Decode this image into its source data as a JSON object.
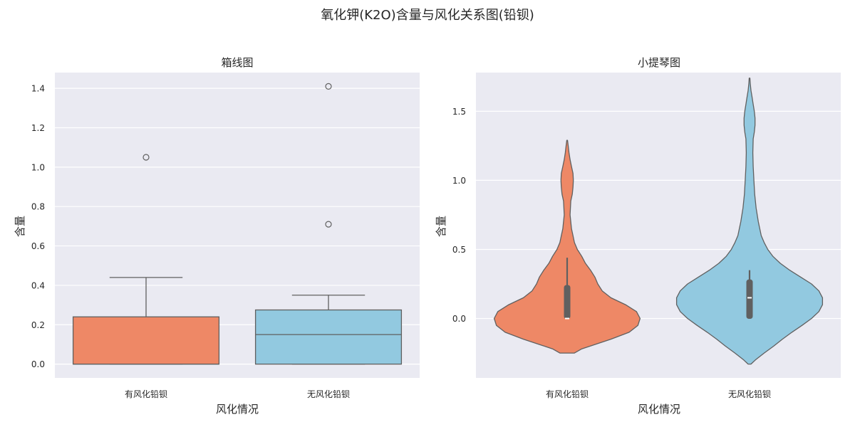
{
  "figure": {
    "suptitle": "氧化钾(K2O)含量与风化关系图(铅钡)"
  },
  "colors": {
    "background": "#eaeaf2",
    "grid": "#ffffff",
    "edge": "#606060",
    "series": [
      "#ee8866",
      "#92c9e0"
    ]
  },
  "chart_data": [
    {
      "type": "box",
      "title": "箱线图",
      "xlabel": "风化情况",
      "ylabel": "含量",
      "categories": [
        "有风化铅钡",
        "无风化铅钡"
      ],
      "ylim": [
        -0.07,
        1.48
      ],
      "yticks": [
        0.0,
        0.2,
        0.4,
        0.6,
        0.8,
        1.0,
        1.2,
        1.4
      ],
      "ytick_labels": [
        "0.0",
        "0.2",
        "0.4",
        "0.6",
        "0.8",
        "1.0",
        "1.2",
        "1.4"
      ],
      "grid": true,
      "boxes": [
        {
          "category": "有风化铅钡",
          "whislo": 0.0,
          "q1": 0.0,
          "median": 0.0,
          "q3": 0.24,
          "whishi": 0.44,
          "fliers": [
            1.05
          ]
        },
        {
          "category": "无风化铅钡",
          "whislo": 0.0,
          "q1": 0.0,
          "median": 0.15,
          "q3": 0.275,
          "whishi": 0.35,
          "fliers": [
            0.71,
            1.41
          ]
        }
      ]
    },
    {
      "type": "violin",
      "title": "小提琴图",
      "xlabel": "风化情况",
      "ylabel": "含量",
      "categories": [
        "有风化铅钡",
        "无风化铅钡"
      ],
      "ylim": [
        -0.43,
        1.78
      ],
      "yticks": [
        0.0,
        0.5,
        1.0,
        1.5
      ],
      "ytick_labels": [
        "0.0",
        "0.5",
        "1.0",
        "1.5"
      ],
      "grid": true,
      "violins": [
        {
          "category": "有风化铅钡",
          "profile": [
            [
              -0.25,
              0.1
            ],
            [
              -0.22,
              0.2
            ],
            [
              -0.15,
              0.6
            ],
            [
              -0.1,
              0.85
            ],
            [
              -0.05,
              0.97
            ],
            [
              0.0,
              1.0
            ],
            [
              0.05,
              0.95
            ],
            [
              0.1,
              0.8
            ],
            [
              0.15,
              0.6
            ],
            [
              0.2,
              0.48
            ],
            [
              0.25,
              0.42
            ],
            [
              0.3,
              0.38
            ],
            [
              0.35,
              0.32
            ],
            [
              0.4,
              0.25
            ],
            [
              0.45,
              0.2
            ],
            [
              0.5,
              0.14
            ],
            [
              0.55,
              0.1
            ],
            [
              0.6,
              0.08
            ],
            [
              0.65,
              0.06
            ],
            [
              0.7,
              0.05
            ],
            [
              0.75,
              0.04
            ],
            [
              0.8,
              0.045
            ],
            [
              0.85,
              0.05
            ],
            [
              0.9,
              0.07
            ],
            [
              0.95,
              0.08
            ],
            [
              1.0,
              0.085
            ],
            [
              1.05,
              0.08
            ],
            [
              1.1,
              0.06
            ],
            [
              1.15,
              0.04
            ],
            [
              1.2,
              0.025
            ],
            [
              1.25,
              0.015
            ],
            [
              1.29,
              0.005
            ]
          ],
          "q1": 0.0,
          "median": 0.0,
          "q3": 0.24,
          "whislo": 0.0,
          "whishi": 0.44
        },
        {
          "category": "无风化铅钡",
          "profile": [
            [
              -0.33,
              0.02
            ],
            [
              -0.3,
              0.08
            ],
            [
              -0.25,
              0.2
            ],
            [
              -0.2,
              0.33
            ],
            [
              -0.15,
              0.45
            ],
            [
              -0.1,
              0.58
            ],
            [
              -0.05,
              0.72
            ],
            [
              0.0,
              0.85
            ],
            [
              0.05,
              0.95
            ],
            [
              0.1,
              1.0
            ],
            [
              0.15,
              1.0
            ],
            [
              0.2,
              0.95
            ],
            [
              0.25,
              0.85
            ],
            [
              0.3,
              0.7
            ],
            [
              0.35,
              0.55
            ],
            [
              0.4,
              0.42
            ],
            [
              0.45,
              0.32
            ],
            [
              0.5,
              0.25
            ],
            [
              0.55,
              0.2
            ],
            [
              0.6,
              0.16
            ],
            [
              0.7,
              0.12
            ],
            [
              0.8,
              0.09
            ],
            [
              0.9,
              0.07
            ],
            [
              1.0,
              0.06
            ],
            [
              1.1,
              0.05
            ],
            [
              1.2,
              0.045
            ],
            [
              1.3,
              0.05
            ],
            [
              1.35,
              0.065
            ],
            [
              1.4,
              0.075
            ],
            [
              1.45,
              0.075
            ],
            [
              1.5,
              0.065
            ],
            [
              1.55,
              0.05
            ],
            [
              1.6,
              0.035
            ],
            [
              1.65,
              0.02
            ],
            [
              1.7,
              0.01
            ],
            [
              1.74,
              0.005
            ]
          ],
          "q1": 0.0,
          "median": 0.15,
          "q3": 0.28,
          "whislo": 0.0,
          "whishi": 0.35
        }
      ]
    }
  ]
}
